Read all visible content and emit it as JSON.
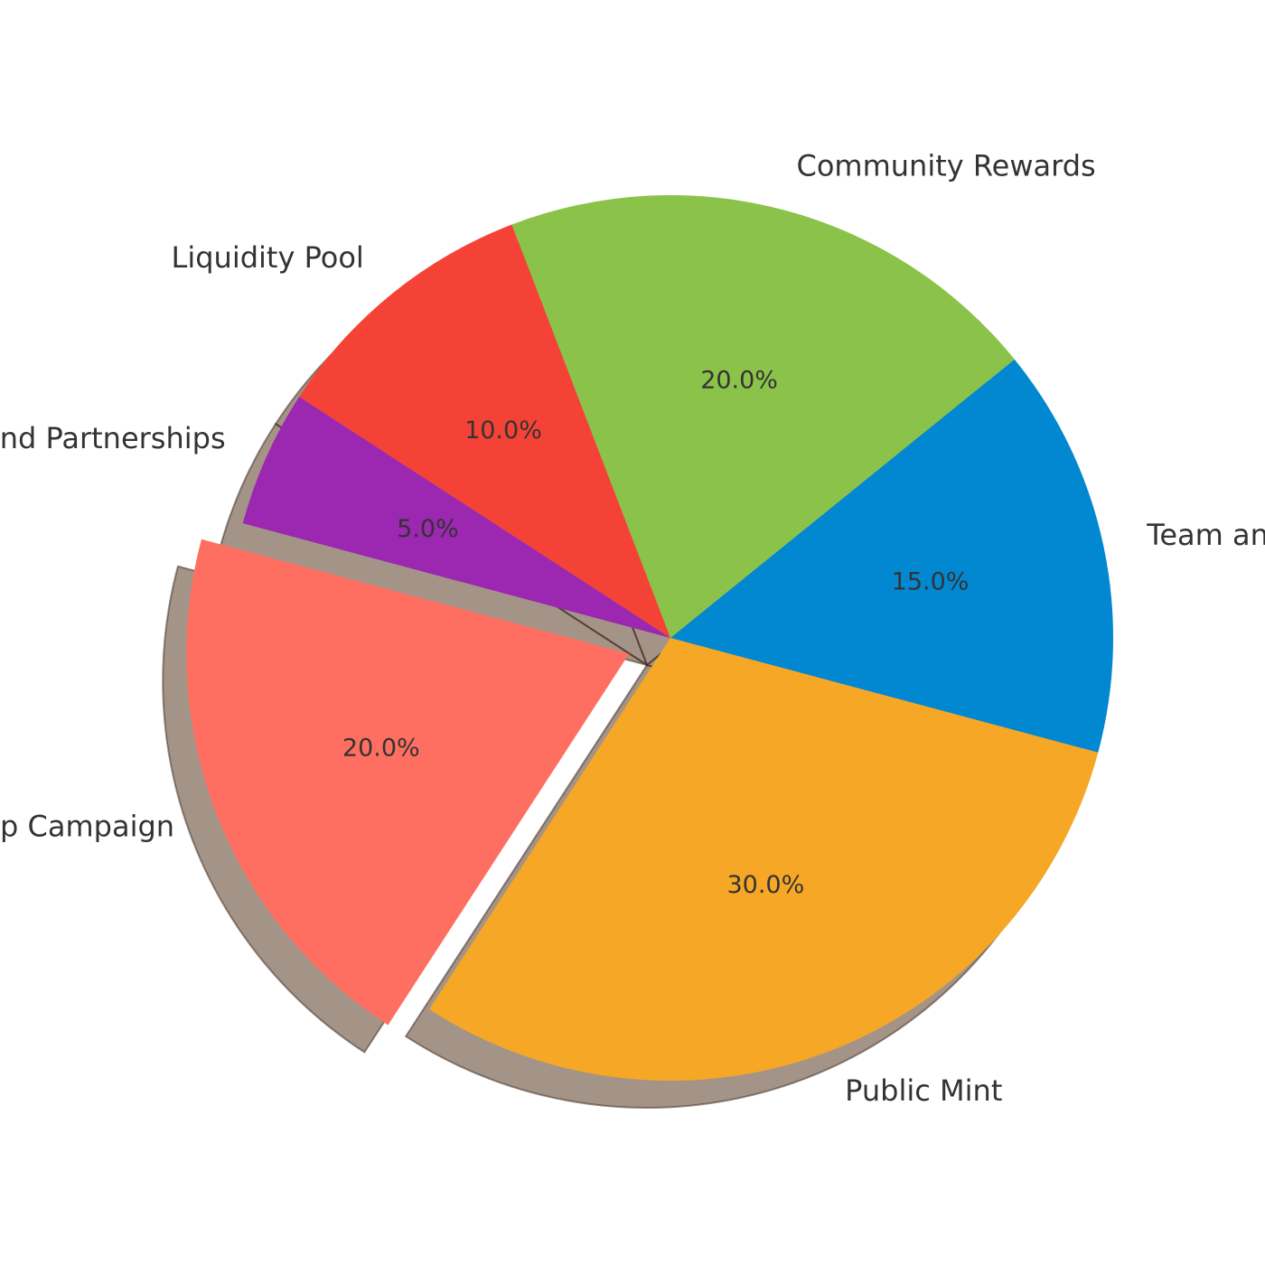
{
  "chart_data": {
    "type": "pie",
    "title": "",
    "slices": [
      {
        "label": "Team and Advisors",
        "value": 15.0,
        "pct_label": "15.0%",
        "color": "#0288D1",
        "exploded": false
      },
      {
        "label": "Community Rewards",
        "value": 20.0,
        "pct_label": "20.0%",
        "color": "#8BC34A",
        "exploded": false
      },
      {
        "label": "Liquidity Pool",
        "value": 10.0,
        "pct_label": "10.0%",
        "color": "#F44336",
        "exploded": false
      },
      {
        "label": "Marketing and Partnerships",
        "value": 5.0,
        "pct_label": "5.0%",
        "color": "#9C27B0",
        "exploded": false
      },
      {
        "label": "Airdrop Campaign",
        "value": 20.0,
        "pct_label": "20.0%",
        "color": "#FF6F61",
        "exploded": true
      },
      {
        "label": "Public Mint",
        "value": 30.0,
        "pct_label": "30.0%",
        "color": "#F7A726",
        "exploded": false
      }
    ],
    "start_angle_deg": -15,
    "direction": "counterclockwise",
    "shadow": true,
    "legend": "none"
  }
}
